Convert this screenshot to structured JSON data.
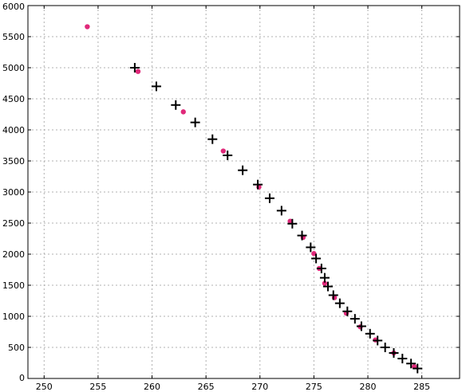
{
  "chart_data": {
    "type": "scatter",
    "title": "",
    "xlabel": "",
    "ylabel": "",
    "xlim": [
      248.5,
      288.5
    ],
    "ylim": [
      0,
      6000
    ],
    "xticks": [
      250,
      255,
      260,
      265,
      270,
      275,
      280,
      285
    ],
    "yticks": [
      0,
      500,
      1000,
      1500,
      2000,
      2500,
      3000,
      3500,
      4000,
      4500,
      5000,
      5500,
      6000
    ],
    "grid": true,
    "legend": "none",
    "series": [
      {
        "marker": "circle",
        "color": "#e0297a",
        "points": [
          [
            254.0,
            5660
          ],
          [
            258.7,
            4940
          ],
          [
            262.9,
            4290
          ],
          [
            266.6,
            3660
          ],
          [
            269.9,
            3080
          ],
          [
            272.8,
            2530
          ],
          [
            274.0,
            2270
          ],
          [
            275.0,
            2010
          ],
          [
            275.5,
            1770
          ],
          [
            276.0,
            1530
          ],
          [
            276.9,
            1300
          ],
          [
            278.0,
            1050
          ],
          [
            279.3,
            830
          ],
          [
            280.7,
            620
          ],
          [
            282.4,
            410
          ],
          [
            284.3,
            190
          ]
        ]
      },
      {
        "marker": "plus",
        "color": "#000000",
        "points": [
          [
            258.4,
            5000
          ],
          [
            260.4,
            4700
          ],
          [
            262.2,
            4400
          ],
          [
            264.0,
            4120
          ],
          [
            265.6,
            3850
          ],
          [
            267.0,
            3590
          ],
          [
            268.4,
            3350
          ],
          [
            269.8,
            3120
          ],
          [
            270.9,
            2900
          ],
          [
            272.0,
            2700
          ],
          [
            273.0,
            2490
          ],
          [
            273.9,
            2300
          ],
          [
            274.7,
            2110
          ],
          [
            275.2,
            1930
          ],
          [
            275.7,
            1770
          ],
          [
            276.0,
            1620
          ],
          [
            276.3,
            1480
          ],
          [
            276.8,
            1340
          ],
          [
            277.4,
            1210
          ],
          [
            278.1,
            1080
          ],
          [
            278.8,
            960
          ],
          [
            279.4,
            840
          ],
          [
            280.2,
            720
          ],
          [
            280.9,
            610
          ],
          [
            281.6,
            500
          ],
          [
            282.4,
            410
          ],
          [
            283.2,
            320
          ],
          [
            284.0,
            240
          ],
          [
            284.6,
            160
          ]
        ]
      }
    ]
  }
}
